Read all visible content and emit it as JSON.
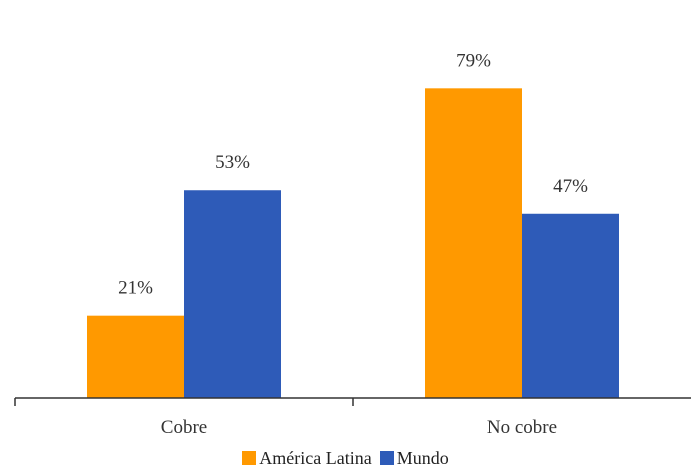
{
  "chart_data": {
    "type": "bar",
    "categories": [
      "Cobre",
      "No cobre"
    ],
    "series": [
      {
        "name": "América Latina",
        "values": [
          21,
          79
        ],
        "color": "#FF9900",
        "labels": [
          "21%",
          "79%"
        ]
      },
      {
        "name": "Mundo",
        "values": [
          53,
          47
        ],
        "color": "#2E5BB8",
        "labels": [
          "53%",
          "47%"
        ]
      }
    ],
    "ylim": [
      0,
      100
    ],
    "grid": false,
    "legend_position": "bottom-center"
  }
}
